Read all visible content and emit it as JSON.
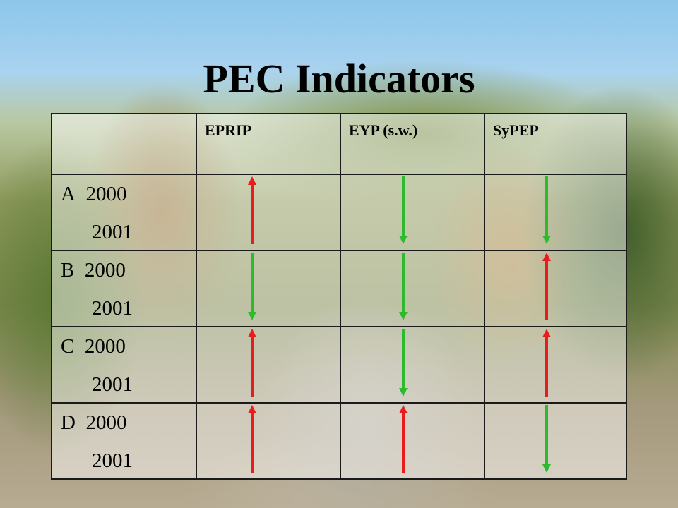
{
  "title": "PEC Indicators",
  "colors": {
    "up": "#e81c1c",
    "down": "#2dbb2d"
  },
  "columns": [
    "EPRIP",
    "EYP (s.w.)",
    "SyPEP"
  ],
  "rows": [
    {
      "label": "A",
      "year1": "2000",
      "year2": "2001",
      "trends": [
        "up",
        "down",
        "down"
      ]
    },
    {
      "label": "B",
      "year1": "2000",
      "year2": "2001",
      "trends": [
        "down",
        "down",
        "up"
      ]
    },
    {
      "label": "C",
      "year1": "2000",
      "year2": "2001",
      "trends": [
        "up",
        "down",
        "up"
      ]
    },
    {
      "label": "D",
      "year1": "2000",
      "year2": "2001",
      "trends": [
        "up",
        "up",
        "down"
      ]
    }
  ]
}
